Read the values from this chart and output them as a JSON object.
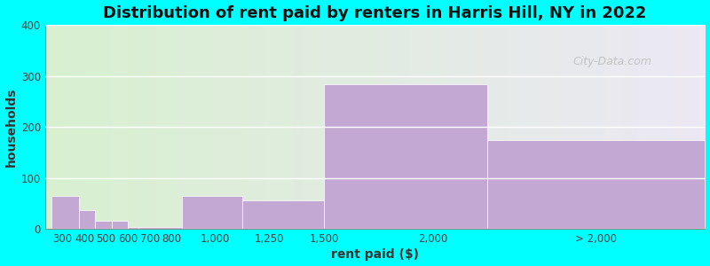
{
  "title": "Distribution of rent paid by renters in Harris Hill, NY in 2022",
  "xlabel": "rent paid ($)",
  "ylabel": "households",
  "tick_labels": [
    "300",
    "400",
    "500",
    "600",
    "700",
    "800",
    "1,000",
    "1,250",
    "1,500",
    "2,000",
    "> 2,000"
  ],
  "tick_positions": [
    300,
    400,
    500,
    600,
    700,
    800,
    1000,
    1250,
    1500,
    2000,
    2750
  ],
  "bar_lefts": [
    250,
    375,
    450,
    525,
    600,
    650,
    850,
    1125,
    1500,
    2250
  ],
  "bar_rights": [
    375,
    450,
    525,
    600,
    650,
    850,
    1125,
    1500,
    2250,
    3250
  ],
  "bar_heights": [
    65,
    37,
    17,
    17,
    4,
    4,
    65,
    57,
    283,
    175
  ],
  "bar_color": "#c4a8d4",
  "ylim": [
    0,
    400
  ],
  "yticks": [
    0,
    100,
    200,
    300,
    400
  ],
  "xlim": [
    220,
    3250
  ],
  "background_color": "#00ffff",
  "bg_color_left": "#d8f0d0",
  "bg_color_right": "#ece8f4",
  "title_fontsize": 13,
  "axis_label_fontsize": 10,
  "tick_fontsize": 8.5,
  "watermark": "City-Data.com"
}
